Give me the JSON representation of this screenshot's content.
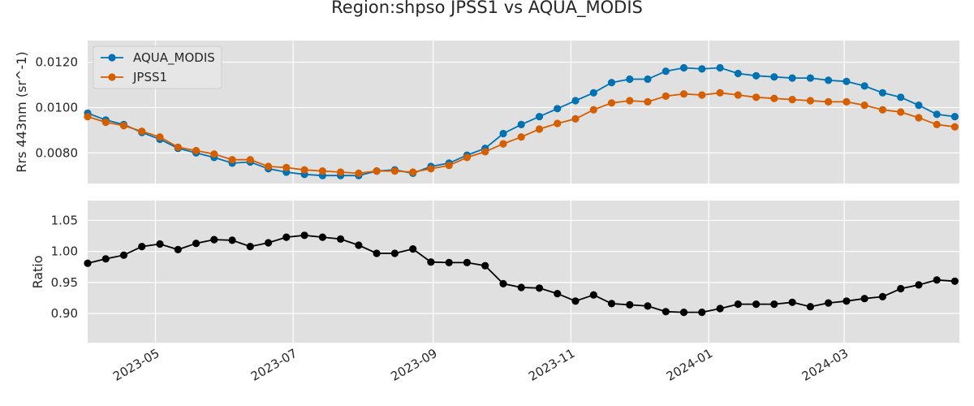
{
  "title": "Region:shpso JPSS1 vs AQUA_MODIS",
  "colors": {
    "aqua": "#0072B2",
    "jpss": "#D55E00",
    "ratio": "#000000",
    "panel_bg": "#E0E0E0",
    "grid": "#FFFFFF"
  },
  "chart_data": [
    {
      "type": "line",
      "ylabel": "Rrs 443nm (sr^-1)",
      "ylim": [
        0.00665,
        0.01295
      ],
      "yticks": [
        "0.0080",
        "0.0100",
        "0.0120"
      ],
      "ytick_values": [
        0.008,
        0.01,
        0.012
      ],
      "legend_location": "upper-left",
      "grid": true,
      "x": [
        "2023-04-01",
        "2023-04-09",
        "2023-04-17",
        "2023-04-25",
        "2023-05-03",
        "2023-05-11",
        "2023-05-19",
        "2023-05-27",
        "2023-06-04",
        "2023-06-12",
        "2023-06-20",
        "2023-06-28",
        "2023-07-06",
        "2023-07-14",
        "2023-07-22",
        "2023-07-30",
        "2023-08-07",
        "2023-08-15",
        "2023-08-23",
        "2023-08-31",
        "2023-09-08",
        "2023-09-16",
        "2023-09-24",
        "2023-10-02",
        "2023-10-10",
        "2023-10-18",
        "2023-10-26",
        "2023-11-03",
        "2023-11-11",
        "2023-11-19",
        "2023-11-27",
        "2023-12-05",
        "2023-12-13",
        "2023-12-21",
        "2023-12-29",
        "2024-01-06",
        "2024-01-14",
        "2024-01-22",
        "2024-01-30",
        "2024-02-07",
        "2024-02-15",
        "2024-02-23",
        "2024-03-02",
        "2024-03-10",
        "2024-03-18",
        "2024-03-26",
        "2024-04-03",
        "2024-04-11",
        "2024-04-19"
      ],
      "series": [
        {
          "name": "AQUA_MODIS",
          "values": [
            0.00975,
            0.00945,
            0.00925,
            0.0089,
            0.0086,
            0.0082,
            0.008,
            0.0078,
            0.00755,
            0.0076,
            0.0073,
            0.00715,
            0.00705,
            0.007,
            0.007,
            0.007,
            0.0072,
            0.00725,
            0.0071,
            0.0074,
            0.00755,
            0.0079,
            0.0082,
            0.00885,
            0.00925,
            0.0096,
            0.00995,
            0.0103,
            0.01065,
            0.0111,
            0.01125,
            0.01125,
            0.0116,
            0.01175,
            0.0117,
            0.01175,
            0.0115,
            0.0114,
            0.01135,
            0.0113,
            0.0113,
            0.0112,
            0.01115,
            0.01095,
            0.01065,
            0.01045,
            0.0101,
            0.0097,
            0.0096
          ]
        },
        {
          "name": "JPSS1",
          "values": [
            0.0096,
            0.00935,
            0.0092,
            0.00895,
            0.0087,
            0.00825,
            0.0081,
            0.00795,
            0.0077,
            0.0077,
            0.0074,
            0.00735,
            0.00725,
            0.0072,
            0.00715,
            0.0071,
            0.0072,
            0.0072,
            0.00715,
            0.0073,
            0.00745,
            0.0078,
            0.00805,
            0.0084,
            0.0087,
            0.00905,
            0.0093,
            0.0095,
            0.0099,
            0.0102,
            0.0103,
            0.01025,
            0.0105,
            0.0106,
            0.01055,
            0.01065,
            0.01055,
            0.01045,
            0.0104,
            0.01035,
            0.0103,
            0.01025,
            0.01025,
            0.0101,
            0.0099,
            0.0098,
            0.00955,
            0.00925,
            0.00915
          ]
        }
      ]
    },
    {
      "type": "line",
      "ylabel": "Ratio",
      "ylim": [
        0.853,
        1.082
      ],
      "yticks": [
        "0.90",
        "0.95",
        "1.00",
        "1.05"
      ],
      "ytick_values": [
        0.9,
        0.95,
        1.0,
        1.05
      ],
      "grid": true,
      "xtick_labels": [
        "2023-05",
        "2023-07",
        "2023-09",
        "2023-11",
        "2024-01",
        "2024-03"
      ],
      "xtick_values": [
        "2023-05-01",
        "2023-07-01",
        "2023-09-01",
        "2023-11-01",
        "2024-01-01",
        "2024-03-01"
      ],
      "xlim": [
        "2023-04-01",
        "2024-04-21"
      ],
      "series": [
        {
          "name": "",
          "values": [
            0.981,
            0.988,
            0.994,
            1.008,
            1.012,
            1.003,
            1.013,
            1.019,
            1.018,
            1.008,
            1.014,
            1.023,
            1.026,
            1.023,
            1.02,
            1.01,
            0.997,
            0.997,
            1.004,
            0.983,
            0.982,
            0.982,
            0.977,
            0.948,
            0.942,
            0.941,
            0.932,
            0.92,
            0.93,
            0.916,
            0.914,
            0.912,
            0.903,
            0.902,
            0.902,
            0.908,
            0.915,
            0.915,
            0.915,
            0.918,
            0.911,
            0.917,
            0.92,
            0.924,
            0.927,
            0.94,
            0.946,
            0.954,
            0.952
          ]
        }
      ]
    }
  ]
}
